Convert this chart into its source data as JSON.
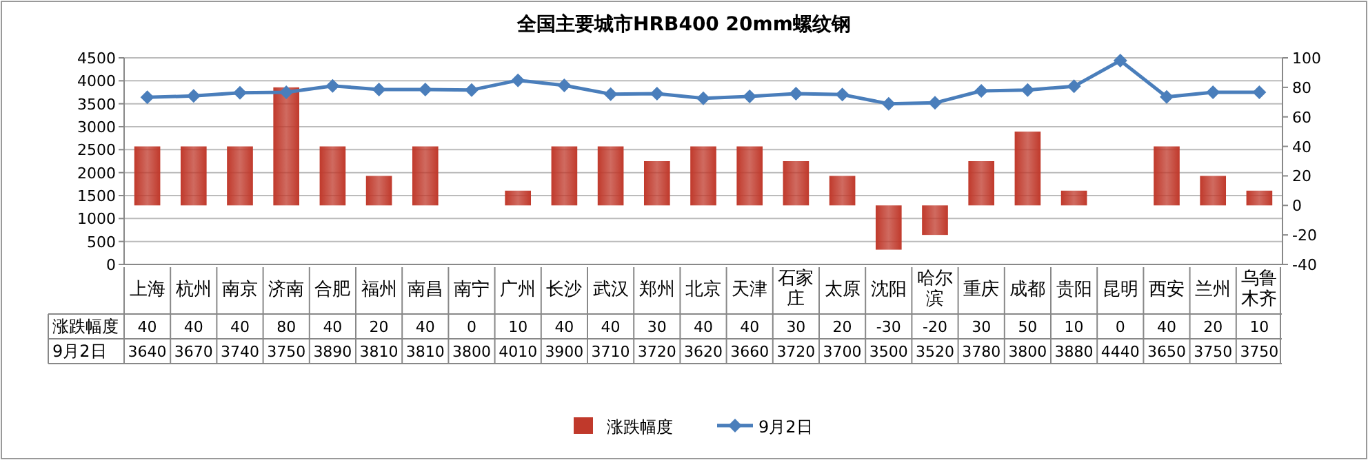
{
  "chart_data": {
    "type": "bar",
    "title": "全国主要城市HRB400 20mm螺纹钢",
    "categories": [
      "上海",
      "杭州",
      "南京",
      "济南",
      "合肥",
      "福州",
      "南昌",
      "南宁",
      "广州",
      "长沙",
      "武汉",
      "郑州",
      "北京",
      "天津",
      "石家庄",
      "太原",
      "沈阳",
      "哈尔滨",
      "重庆",
      "成都",
      "贵阳",
      "昆明",
      "西安",
      "兰州",
      "乌鲁木齐"
    ],
    "series": [
      {
        "name": "涨跌幅度",
        "axis": "y2",
        "color": "#c0392b",
        "values": [
          40,
          40,
          40,
          80,
          40,
          20,
          40,
          0,
          10,
          40,
          40,
          30,
          40,
          40,
          30,
          20,
          -30,
          -20,
          30,
          50,
          10,
          0,
          40,
          20,
          10
        ]
      },
      {
        "name": "9月2日",
        "type": "line",
        "color": "#4a7ebb",
        "values": [
          3640,
          3670,
          3740,
          3750,
          3890,
          3810,
          3810,
          3800,
          4010,
          3900,
          3710,
          3720,
          3620,
          3660,
          3720,
          3700,
          3500,
          3520,
          3780,
          3800,
          3880,
          4440,
          3650,
          3750,
          3750
        ]
      }
    ],
    "ylim": [
      0,
      4500
    ],
    "yticks": [
      0,
      500,
      1000,
      1500,
      2000,
      2500,
      3000,
      3500,
      4000,
      4500
    ],
    "y2lim": [
      -40,
      100
    ],
    "y2ticks": [
      -40,
      -20,
      0,
      20,
      40,
      60,
      80,
      100
    ],
    "grid": "y",
    "legend": "bottom",
    "data_labels": true,
    "marker": "diamond"
  }
}
